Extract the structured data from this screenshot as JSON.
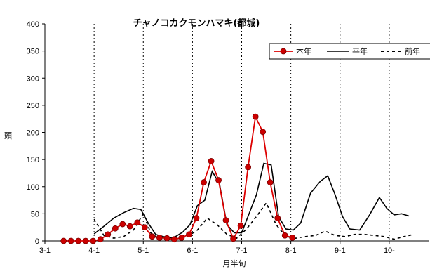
{
  "chart_data": {
    "type": "line",
    "title": "チャノコカクモンハマキ(都城)",
    "xlabel": "月半旬",
    "ylabel": "頭",
    "ylim": [
      0,
      400
    ],
    "yticks": [
      0,
      50,
      100,
      150,
      200,
      250,
      300,
      350,
      400
    ],
    "xlim": [
      0,
      78
    ],
    "xtick_labels": [
      "3-1",
      "4-1",
      "5-1",
      "6-1",
      "7-1",
      "8-1",
      "9-1",
      "10-"
    ],
    "xtick_positions": [
      0,
      10,
      20,
      30,
      40,
      50,
      60,
      70
    ],
    "vlines": [
      10,
      20,
      30,
      40,
      50,
      60,
      70
    ],
    "legend_position": "top-right",
    "colors": {
      "current": "#dd0000",
      "marker_fill": "#cc0000",
      "normal": "#000000",
      "previous": "#000000",
      "gridline": "#000000"
    },
    "series": [
      {
        "name": "本年",
        "style": "solid-marker",
        "points": [
          [
            3.8,
            0
          ],
          [
            5.3,
            0
          ],
          [
            6.8,
            0
          ],
          [
            8.3,
            0
          ],
          [
            9.8,
            0
          ],
          [
            11.3,
            3
          ],
          [
            12.8,
            12
          ],
          [
            14.3,
            23
          ],
          [
            15.8,
            31
          ],
          [
            17.3,
            27
          ],
          [
            18.8,
            34
          ],
          [
            20.3,
            25
          ],
          [
            21.8,
            8
          ],
          [
            23.3,
            6
          ],
          [
            24.8,
            5
          ],
          [
            26.3,
            3
          ],
          [
            27.8,
            6
          ],
          [
            29.3,
            12
          ],
          [
            30.8,
            42
          ],
          [
            32.3,
            108
          ],
          [
            33.8,
            147
          ],
          [
            35.3,
            112
          ],
          [
            36.8,
            38
          ],
          [
            38.3,
            4
          ],
          [
            39.8,
            28
          ],
          [
            41.3,
            136
          ],
          [
            42.8,
            229
          ],
          [
            44.3,
            201
          ],
          [
            45.8,
            108
          ],
          [
            47.3,
            42
          ],
          [
            48.8,
            10
          ],
          [
            50.3,
            6
          ]
        ]
      },
      {
        "name": "平年",
        "style": "solid",
        "points": [
          [
            10,
            13
          ],
          [
            12,
            27
          ],
          [
            14,
            42
          ],
          [
            16,
            52
          ],
          [
            18,
            60
          ],
          [
            19.5,
            58
          ],
          [
            21,
            33
          ],
          [
            22.5,
            12
          ],
          [
            24,
            8
          ],
          [
            26,
            5
          ],
          [
            28,
            16
          ],
          [
            29.5,
            30
          ],
          [
            31,
            65
          ],
          [
            32.5,
            75
          ],
          [
            34,
            128
          ],
          [
            35.5,
            105
          ],
          [
            37,
            30
          ],
          [
            38.5,
            15
          ],
          [
            40,
            15
          ],
          [
            41.5,
            50
          ],
          [
            43,
            85
          ],
          [
            44.5,
            143
          ],
          [
            46,
            140
          ],
          [
            47.5,
            45
          ],
          [
            49,
            22
          ],
          [
            50.5,
            20
          ],
          [
            52,
            33
          ],
          [
            54,
            88
          ],
          [
            56,
            110
          ],
          [
            57.5,
            120
          ],
          [
            59,
            85
          ],
          [
            60.5,
            45
          ],
          [
            62,
            22
          ],
          [
            64,
            20
          ],
          [
            66,
            48
          ],
          [
            68,
            80
          ],
          [
            69.5,
            60
          ],
          [
            71,
            48
          ],
          [
            72.5,
            50
          ],
          [
            74,
            46
          ]
        ]
      },
      {
        "name": "前年",
        "style": "dashed",
        "points": [
          [
            10,
            40
          ],
          [
            12,
            10
          ],
          [
            14,
            5
          ],
          [
            16,
            8
          ],
          [
            18,
            20
          ],
          [
            20,
            50
          ],
          [
            21.5,
            15
          ],
          [
            23,
            5
          ],
          [
            25,
            3
          ],
          [
            27,
            4
          ],
          [
            29,
            8
          ],
          [
            31,
            20
          ],
          [
            33,
            42
          ],
          [
            35,
            30
          ],
          [
            37,
            12
          ],
          [
            39,
            5
          ],
          [
            41,
            22
          ],
          [
            43,
            45
          ],
          [
            45,
            70
          ],
          [
            47,
            30
          ],
          [
            49,
            8
          ],
          [
            51,
            5
          ],
          [
            53,
            8
          ],
          [
            55,
            10
          ],
          [
            57,
            18
          ],
          [
            59,
            10
          ],
          [
            61,
            8
          ],
          [
            63,
            12
          ],
          [
            65,
            12
          ],
          [
            67,
            10
          ],
          [
            69,
            8
          ],
          [
            71,
            3
          ],
          [
            73,
            8
          ],
          [
            75,
            12
          ]
        ]
      }
    ]
  }
}
